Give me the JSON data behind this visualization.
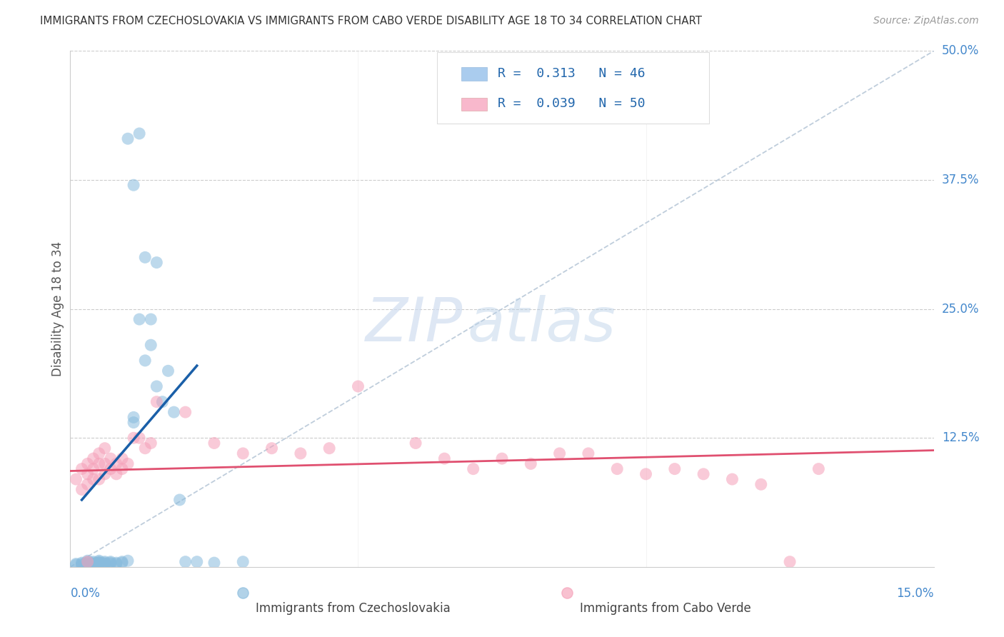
{
  "title": "IMMIGRANTS FROM CZECHOSLOVAKIA VS IMMIGRANTS FROM CABO VERDE DISABILITY AGE 18 TO 34 CORRELATION CHART",
  "source": "Source: ZipAtlas.com",
  "ylabel_label": "Disability Age 18 to 34",
  "xlim": [
    0.0,
    0.15
  ],
  "ylim": [
    0.0,
    0.5
  ],
  "yticks": [
    0.0,
    0.125,
    0.25,
    0.375,
    0.5
  ],
  "ytick_labels": [
    "",
    "12.5%",
    "25.0%",
    "37.5%",
    "50.0%"
  ],
  "blue_color": "#88bbdd",
  "pink_color": "#f5a0b8",
  "blue_line_color": "#1a5fa8",
  "pink_line_color": "#e05070",
  "ref_line_color": "#b8c8d8",
  "legend1_color": "#aaccee",
  "legend2_color": "#f8b8cc",
  "label1": "Immigrants from Czechoslovakia",
  "label2": "Immigrants from Cabo Verde",
  "blue_line_x": [
    0.002,
    0.022
  ],
  "blue_line_y": [
    0.065,
    0.195
  ],
  "pink_line_x": [
    0.0,
    0.15
  ],
  "pink_line_y": [
    0.093,
    0.113
  ],
  "blue_x": [
    0.001,
    0.001,
    0.002,
    0.002,
    0.002,
    0.003,
    0.003,
    0.003,
    0.003,
    0.003,
    0.004,
    0.004,
    0.004,
    0.004,
    0.004,
    0.005,
    0.005,
    0.005,
    0.005,
    0.005,
    0.006,
    0.006,
    0.006,
    0.006,
    0.007,
    0.007,
    0.007,
    0.008,
    0.008,
    0.009,
    0.009,
    0.01,
    0.011,
    0.011,
    0.012,
    0.013,
    0.014,
    0.015,
    0.016,
    0.017,
    0.018,
    0.019,
    0.02,
    0.022,
    0.025,
    0.03
  ],
  "blue_y": [
    0.002,
    0.003,
    0.002,
    0.003,
    0.004,
    0.002,
    0.003,
    0.004,
    0.005,
    0.006,
    0.002,
    0.003,
    0.004,
    0.005,
    0.003,
    0.003,
    0.004,
    0.005,
    0.006,
    0.004,
    0.003,
    0.004,
    0.005,
    0.003,
    0.004,
    0.005,
    0.003,
    0.004,
    0.003,
    0.005,
    0.004,
    0.006,
    0.14,
    0.145,
    0.24,
    0.2,
    0.215,
    0.175,
    0.16,
    0.19,
    0.15,
    0.065,
    0.005,
    0.005,
    0.004,
    0.005
  ],
  "blue_outlier_x": [
    0.01,
    0.012,
    0.011,
    0.013,
    0.015,
    0.014
  ],
  "blue_outlier_y": [
    0.415,
    0.42,
    0.37,
    0.3,
    0.295,
    0.24
  ],
  "pink_x": [
    0.001,
    0.002,
    0.002,
    0.003,
    0.003,
    0.003,
    0.004,
    0.004,
    0.004,
    0.005,
    0.005,
    0.005,
    0.006,
    0.006,
    0.006,
    0.007,
    0.007,
    0.008,
    0.008,
    0.009,
    0.009,
    0.01,
    0.011,
    0.012,
    0.013,
    0.014,
    0.015,
    0.02,
    0.025,
    0.03,
    0.035,
    0.04,
    0.045,
    0.05,
    0.06,
    0.065,
    0.07,
    0.075,
    0.08,
    0.085,
    0.09,
    0.095,
    0.1,
    0.105,
    0.11,
    0.115,
    0.12,
    0.125,
    0.13,
    0.003
  ],
  "pink_y": [
    0.085,
    0.075,
    0.095,
    0.08,
    0.09,
    0.1,
    0.085,
    0.095,
    0.105,
    0.085,
    0.1,
    0.11,
    0.09,
    0.1,
    0.115,
    0.095,
    0.105,
    0.09,
    0.1,
    0.095,
    0.105,
    0.1,
    0.125,
    0.125,
    0.115,
    0.12,
    0.16,
    0.15,
    0.12,
    0.11,
    0.115,
    0.11,
    0.115,
    0.175,
    0.12,
    0.105,
    0.095,
    0.105,
    0.1,
    0.11,
    0.11,
    0.095,
    0.09,
    0.095,
    0.09,
    0.085,
    0.08,
    0.005,
    0.095,
    0.005
  ]
}
